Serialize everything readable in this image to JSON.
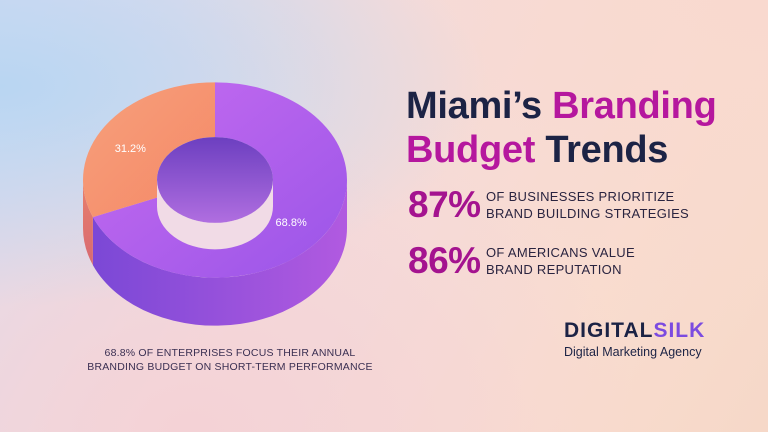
{
  "title": {
    "part1": "Miami’s ",
    "accent1": "Branding",
    "accent2": "Budget",
    "part2": " Trends"
  },
  "stats": [
    {
      "value": "87%",
      "line1": "of businesses prioritize",
      "line2": "brand building strategies"
    },
    {
      "value": "86%",
      "line1": "of Americans value",
      "line2": "brand reputation"
    }
  ],
  "caption": {
    "line1": "68.8% of enterprises focus their annual",
    "line2": "branding budget on short-term performance"
  },
  "brand": {
    "name_part1": "DIGITAL",
    "name_part2": "SILK",
    "tagline": "Digital Marketing Agency"
  },
  "colors": {
    "purple": "#a85be6",
    "orange": "#f79a73",
    "accent": "#b5179e",
    "navy": "#1c2345"
  },
  "chart_data": {
    "type": "pie",
    "categories": [
      "",
      ""
    ],
    "values": [
      68.8,
      31.2
    ],
    "labels": [
      "68.8%",
      "31.2%"
    ],
    "title": ""
  }
}
